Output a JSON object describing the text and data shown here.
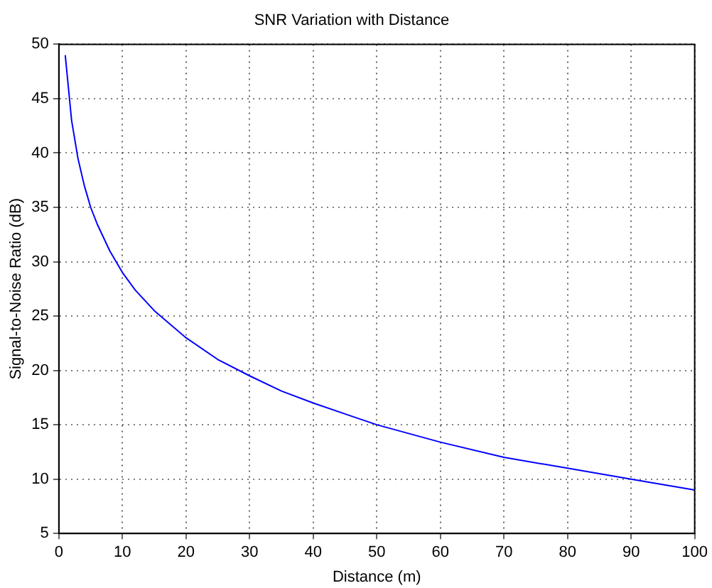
{
  "chart_data": {
    "type": "line",
    "title": "SNR Variation with Distance",
    "xlabel": "Distance (m)",
    "ylabel": "Signal-to-Noise Ratio (dB)",
    "series": [
      {
        "color": "#0000ff",
        "x": [
          1,
          2,
          3,
          4,
          5,
          6,
          8,
          10,
          12,
          15,
          20,
          25,
          30,
          35,
          40,
          45,
          50,
          55,
          60,
          70,
          80,
          90,
          100
        ],
        "values": [
          49,
          43,
          39.5,
          37,
          35,
          33.5,
          31,
          29,
          27.4,
          25.5,
          23,
          21,
          19.5,
          18.1,
          17,
          16,
          15,
          14.2,
          13.4,
          12,
          11,
          10,
          9
        ]
      }
    ],
    "xlim": [
      0,
      100
    ],
    "xticks": [
      0,
      10,
      20,
      30,
      40,
      50,
      60,
      70,
      80,
      90,
      100
    ],
    "ylim": [
      5,
      50
    ],
    "yticks": [
      5,
      10,
      15,
      20,
      25,
      30,
      35,
      40,
      45,
      50
    ],
    "grid": true,
    "legend": false,
    "marker": "none",
    "line_style": "solid"
  }
}
